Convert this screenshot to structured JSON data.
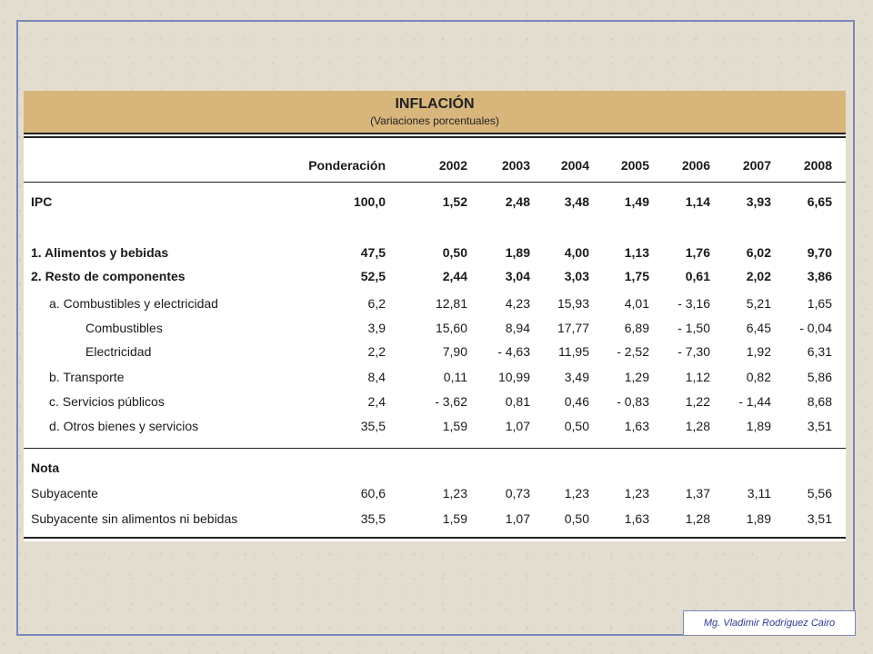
{
  "title": "INFLACIÓN",
  "subtitle": "(Variaciones porcentuales)",
  "columns": [
    "Ponderación",
    "2002",
    "2003",
    "2004",
    "2005",
    "2006",
    "2007",
    "2008"
  ],
  "rows": [
    {
      "label": "IPC",
      "values": [
        "100,0",
        "1,52",
        "2,48",
        "3,48",
        "1,49",
        "1,14",
        "3,93",
        "6,65"
      ]
    },
    {
      "label": "1. Alimentos y bebidas",
      "values": [
        "47,5",
        "0,50",
        "1,89",
        "4,00",
        "1,13",
        "1,76",
        "6,02",
        "9,70"
      ]
    },
    {
      "label": "2. Resto de componentes",
      "values": [
        "52,5",
        "2,44",
        "3,04",
        "3,03",
        "1,75",
        "0,61",
        "2,02",
        "3,86"
      ]
    },
    {
      "label": "a. Combustibles y electricidad",
      "values": [
        "6,2",
        "12,81",
        "4,23",
        "15,93",
        "4,01",
        "- 3,16",
        "5,21",
        "1,65"
      ]
    },
    {
      "label": "Combustibles",
      "values": [
        "3,9",
        "15,60",
        "8,94",
        "17,77",
        "6,89",
        "- 1,50",
        "6,45",
        "- 0,04"
      ]
    },
    {
      "label": "Electricidad",
      "values": [
        "2,2",
        "7,90",
        "- 4,63",
        "11,95",
        "- 2,52",
        "- 7,30",
        "1,92",
        "6,31"
      ]
    },
    {
      "label": "b. Transporte",
      "values": [
        "8,4",
        "0,11",
        "10,99",
        "3,49",
        "1,29",
        "1,12",
        "0,82",
        "5,86"
      ]
    },
    {
      "label": "c. Servicios públicos",
      "values": [
        "2,4",
        "- 3,62",
        "0,81",
        "0,46",
        "- 0,83",
        "1,22",
        "- 1,44",
        "8,68"
      ]
    },
    {
      "label": "d. Otros bienes y servicios",
      "values": [
        "35,5",
        "1,59",
        "1,07",
        "0,50",
        "1,63",
        "1,28",
        "1,89",
        "3,51"
      ]
    },
    {
      "label": "Nota",
      "values": []
    },
    {
      "label": "Subyacente",
      "values": [
        "60,6",
        "1,23",
        "0,73",
        "1,23",
        "1,23",
        "1,37",
        "3,11",
        "5,56"
      ]
    },
    {
      "label": "Subyacente sin alimentos ni bebidas",
      "values": [
        "35,5",
        "1,59",
        "1,07",
        "0,50",
        "1,63",
        "1,28",
        "1,89",
        "3,51"
      ]
    }
  ],
  "credit": "Mg. Vladimir Rodríguez Cairo",
  "colors": {
    "header_band": "#d7b57b",
    "frame": "#7d88b8",
    "credit_text": "#2b3a8c"
  }
}
